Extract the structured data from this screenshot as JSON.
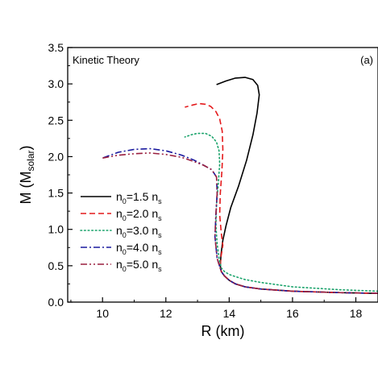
{
  "chart_data": {
    "type": "line",
    "title": "",
    "annotations": {
      "top_left": "Kinetic Theory",
      "top_right": "(a)"
    },
    "xlabel": "R (km)",
    "ylabel": {
      "main": "M (M",
      "sub": "solar",
      "close": ")"
    },
    "xlim": [
      8.9,
      18.7
    ],
    "ylim": [
      0.0,
      3.5
    ],
    "xticks": [
      10,
      12,
      14,
      16,
      18
    ],
    "yticks": [
      0.0,
      0.5,
      1.0,
      1.5,
      2.0,
      2.5,
      3.0,
      3.5
    ],
    "xtick_labels": [
      "10",
      "12",
      "14",
      "16",
      "18"
    ],
    "ytick_labels": [
      "0.0",
      "0.5",
      "1.0",
      "1.5",
      "2.0",
      "2.5",
      "3.0",
      "3.5"
    ],
    "grid": false,
    "legend_position": "middle-left",
    "colors": {
      "n15": "#000000",
      "n20": "#e41a1c",
      "n30": "#1aa36b",
      "n40": "#1a1a9e",
      "n50": "#9a1f3f"
    },
    "series": [
      {
        "key": "n15",
        "legend": {
          "pre": "n",
          "sub1": "0",
          "mid": "=1.5 n",
          "sub2": "s"
        },
        "dash": "solid",
        "x": [
          18.7,
          17.5,
          16.0,
          15.0,
          14.5,
          14.2,
          14.0,
          13.85,
          13.75,
          13.72,
          13.74,
          13.8,
          13.9,
          14.05,
          14.3,
          14.55,
          14.75,
          14.88,
          14.95,
          14.9,
          14.75,
          14.5,
          14.2,
          13.9,
          13.6
        ],
        "y": [
          0.12,
          0.13,
          0.15,
          0.18,
          0.21,
          0.25,
          0.3,
          0.36,
          0.42,
          0.5,
          0.65,
          0.85,
          1.05,
          1.3,
          1.6,
          1.95,
          2.3,
          2.6,
          2.85,
          2.98,
          3.06,
          3.09,
          3.08,
          3.04,
          2.99
        ]
      },
      {
        "key": "n20",
        "legend": {
          "pre": "n",
          "sub1": "0",
          "mid": "=2.0 n",
          "sub2": "s"
        },
        "dash": "dash",
        "x": [
          18.7,
          17.5,
          16.0,
          15.0,
          14.5,
          14.2,
          14.0,
          13.85,
          13.75,
          13.72,
          13.74,
          13.8,
          13.75,
          13.7,
          13.72,
          13.77,
          13.8,
          13.78,
          13.7,
          13.58,
          13.42,
          13.25,
          13.05,
          12.85,
          12.6
        ],
        "y": [
          0.12,
          0.13,
          0.15,
          0.18,
          0.21,
          0.25,
          0.3,
          0.36,
          0.42,
          0.5,
          0.62,
          0.78,
          0.95,
          1.2,
          1.5,
          1.8,
          2.1,
          2.35,
          2.52,
          2.62,
          2.69,
          2.72,
          2.73,
          2.71,
          2.68
        ]
      },
      {
        "key": "n30",
        "legend": {
          "pre": "n",
          "sub1": "0",
          "mid": "=3.0 n",
          "sub2": "s"
        },
        "dash": "dot",
        "x": [
          18.7,
          17.5,
          16.0,
          15.0,
          14.5,
          14.2,
          14.0,
          13.85,
          13.75,
          13.68,
          13.62,
          13.58,
          13.6,
          13.66,
          13.7,
          13.68,
          13.6,
          13.45,
          13.25,
          13.0,
          12.8,
          12.6
        ],
        "y": [
          0.15,
          0.17,
          0.21,
          0.27,
          0.31,
          0.35,
          0.38,
          0.42,
          0.47,
          0.6,
          0.8,
          1.05,
          1.35,
          1.65,
          1.9,
          2.08,
          2.2,
          2.28,
          2.32,
          2.32,
          2.3,
          2.27
        ]
      },
      {
        "key": "n40",
        "legend": {
          "pre": "n",
          "sub1": "0",
          "mid": "=4.0 n",
          "sub2": "s"
        },
        "dash": "dashdot",
        "x": [
          18.7,
          17.5,
          16.0,
          15.0,
          14.5,
          14.2,
          14.0,
          13.85,
          13.75,
          13.62,
          13.55,
          13.58,
          13.62,
          13.6,
          13.45,
          13.2,
          12.9,
          12.5,
          12.0,
          11.5,
          11.0,
          10.5,
          10.0
        ],
        "y": [
          0.12,
          0.13,
          0.15,
          0.18,
          0.21,
          0.25,
          0.3,
          0.36,
          0.42,
          0.6,
          0.9,
          1.2,
          1.5,
          1.72,
          1.82,
          1.88,
          1.95,
          2.02,
          2.08,
          2.11,
          2.1,
          2.06,
          1.98
        ]
      },
      {
        "key": "n50",
        "legend": {
          "pre": "n",
          "sub1": "0",
          "mid": "=5.0 n",
          "sub2": "s"
        },
        "dash": "dashdotdot",
        "x": [
          18.7,
          17.5,
          16.0,
          15.0,
          14.5,
          14.2,
          14.0,
          13.85,
          13.75,
          13.62,
          13.55,
          13.58,
          13.62,
          13.6,
          13.45,
          13.2,
          12.9,
          12.5,
          12.0,
          11.5,
          11.0,
          10.5,
          10.0
        ],
        "y": [
          0.12,
          0.13,
          0.15,
          0.18,
          0.21,
          0.25,
          0.3,
          0.36,
          0.42,
          0.6,
          0.9,
          1.2,
          1.5,
          1.72,
          1.82,
          1.88,
          1.93,
          1.99,
          2.03,
          2.05,
          2.04,
          2.02,
          1.98
        ]
      }
    ]
  }
}
